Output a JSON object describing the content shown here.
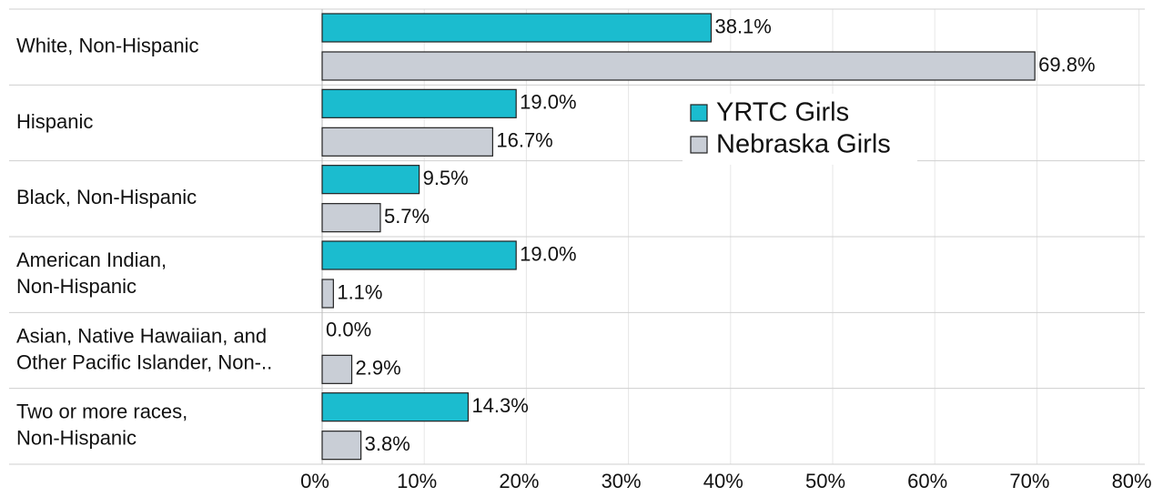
{
  "chart_data": {
    "type": "hbar",
    "categories": [
      [
        "White, Non-Hispanic"
      ],
      [
        "Hispanic"
      ],
      [
        "Black, Non-Hispanic"
      ],
      [
        "American Indian,",
        "Non-Hispanic"
      ],
      [
        "Asian, Native Hawaiian, and",
        "Other Pacific Islander, Non-.."
      ],
      [
        "Two or more races,",
        "Non-Hispanic"
      ]
    ],
    "series": [
      {
        "name": "YRTC Girls",
        "color": "#1bbccf",
        "values": [
          38.1,
          19.0,
          9.5,
          19.0,
          0.0,
          14.3
        ],
        "value_labels": [
          "38.1%",
          "19.0%",
          "9.5%",
          "19.0%",
          "0.0%",
          "14.3%"
        ]
      },
      {
        "name": "Nebraska Girls",
        "color": "#c9ced6",
        "values": [
          69.8,
          16.7,
          5.7,
          1.1,
          2.9,
          3.8
        ],
        "value_labels": [
          "69.8%",
          "16.7%",
          "5.7%",
          "1.1%",
          "2.9%",
          "3.8%"
        ]
      }
    ],
    "xlim": [
      0,
      80
    ],
    "xticks": [
      {
        "value": 0,
        "label": "0%"
      },
      {
        "value": 10,
        "label": "10%"
      },
      {
        "value": 20,
        "label": "20%"
      },
      {
        "value": 30,
        "label": "30%"
      },
      {
        "value": 40,
        "label": "40%"
      },
      {
        "value": 50,
        "label": "50%"
      },
      {
        "value": 60,
        "label": "60%"
      },
      {
        "value": 70,
        "label": "70%"
      },
      {
        "value": 80,
        "label": "80%"
      }
    ],
    "grid": true
  }
}
